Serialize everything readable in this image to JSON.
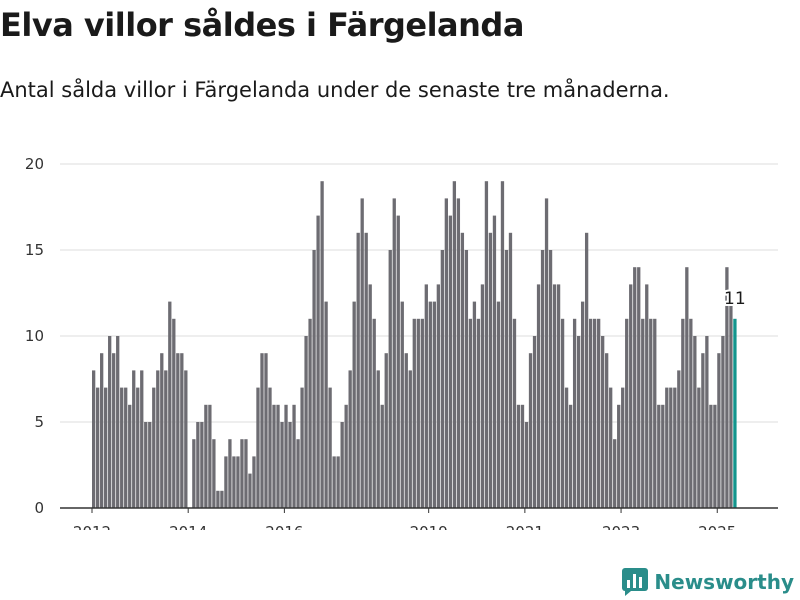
{
  "header": {
    "title": "Elva villor såldes i Färgelanda",
    "subtitle": "Antal sålda villor i Färgelanda under de senaste tre månaderna."
  },
  "logo": {
    "text": "Newsworthy",
    "icon": "newsworthy-chart-icon"
  },
  "colors": {
    "bar": "#6d6c72",
    "highlight": "#13958d",
    "grid": "#dddddd",
    "axis": "#333333",
    "logo": "#2a8d8a"
  },
  "chart_data": {
    "type": "bar",
    "title": "",
    "xlabel": "",
    "ylabel": "",
    "ylim": [
      0,
      20
    ],
    "yticks": [
      0,
      5,
      10,
      15,
      20
    ],
    "x_tick_labels": [
      "2012",
      "2014",
      "2016",
      "2019",
      "2021",
      "2023",
      "2025"
    ],
    "grid": true,
    "start": "2012-01",
    "frequency": "monthly",
    "values": [
      8,
      7,
      9,
      7,
      10,
      9,
      10,
      7,
      7,
      6,
      8,
      7,
      8,
      5,
      5,
      7,
      8,
      9,
      8,
      12,
      11,
      9,
      9,
      8,
      0,
      4,
      5,
      5,
      6,
      6,
      4,
      1,
      1,
      3,
      4,
      3,
      3,
      4,
      4,
      2,
      3,
      7,
      9,
      9,
      7,
      6,
      6,
      5,
      6,
      5,
      6,
      4,
      7,
      10,
      11,
      15,
      17,
      19,
      12,
      7,
      3,
      3,
      5,
      6,
      8,
      12,
      16,
      18,
      16,
      13,
      11,
      8,
      6,
      9,
      15,
      18,
      17,
      12,
      9,
      8,
      11,
      11,
      11,
      13,
      12,
      12,
      13,
      15,
      18,
      17,
      19,
      18,
      16,
      15,
      11,
      12,
      11,
      13,
      19,
      16,
      17,
      12,
      19,
      15,
      16,
      11,
      6,
      6,
      5,
      9,
      10,
      13,
      15,
      18,
      15,
      13,
      13,
      11,
      7,
      6,
      11,
      10,
      12,
      16,
      11,
      11,
      11,
      10,
      9,
      7,
      4,
      6,
      7,
      11,
      13,
      14,
      14,
      11,
      13,
      11,
      11,
      6,
      6,
      7,
      7,
      7,
      8,
      11,
      14,
      11,
      10,
      7,
      9,
      10,
      6,
      6,
      9,
      10,
      14,
      12,
      11
    ],
    "highlight_label": "11"
  }
}
